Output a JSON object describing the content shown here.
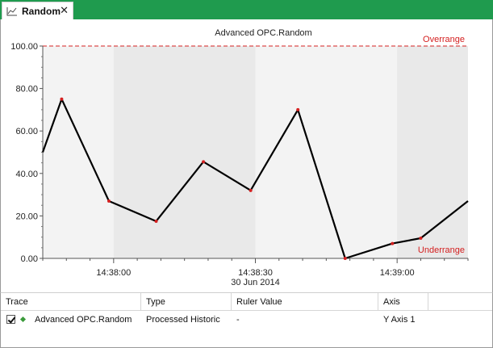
{
  "tab": {
    "label": "Random",
    "icon": "line-chart-icon",
    "close": "✕"
  },
  "colors": {
    "tab_bar": "#1f9b4e",
    "trace": "#000000",
    "limit": "#d42020",
    "plot_bg_light": "#f3f3f3",
    "plot_bg_dark": "#e9e9e9"
  },
  "chart_data": {
    "type": "line",
    "title": "Advanced OPC.Random",
    "date_label": "30 Jun 2014",
    "ylim": [
      0,
      100
    ],
    "xlim": [
      "14:37:45",
      "14:39:15"
    ],
    "yticks": [
      "0.00",
      "20.00",
      "40.00",
      "60.00",
      "80.00",
      "100.00"
    ],
    "xticks": [
      {
        "t": "14:38:00",
        "label": "14:38:00"
      },
      {
        "t": "14:38:30",
        "label": "14:38:30"
      },
      {
        "t": "14:39:00",
        "label": "14:39:00"
      }
    ],
    "limits": [
      {
        "name": "Overrange",
        "value": 100
      },
      {
        "name": "Underrange",
        "value": 0
      }
    ],
    "series": [
      {
        "name": "Advanced OPC.Random",
        "x": [
          "14:37:45",
          "14:37:49",
          "14:37:59",
          "14:38:09",
          "14:38:19",
          "14:38:29",
          "14:38:39",
          "14:38:49",
          "14:38:59",
          "14:39:05",
          "14:39:15"
        ],
        "values": [
          50,
          75,
          27,
          17.5,
          45.5,
          32,
          70,
          0,
          7,
          9.5,
          27
        ]
      }
    ]
  },
  "table": {
    "columns": [
      "Trace",
      "Type",
      "Ruler Value",
      "Axis"
    ],
    "rows": [
      {
        "checked": true,
        "trace": "Advanced OPC.Random",
        "type": "Processed Historic",
        "ruler_value": "-",
        "axis": "Y Axis 1"
      }
    ]
  }
}
